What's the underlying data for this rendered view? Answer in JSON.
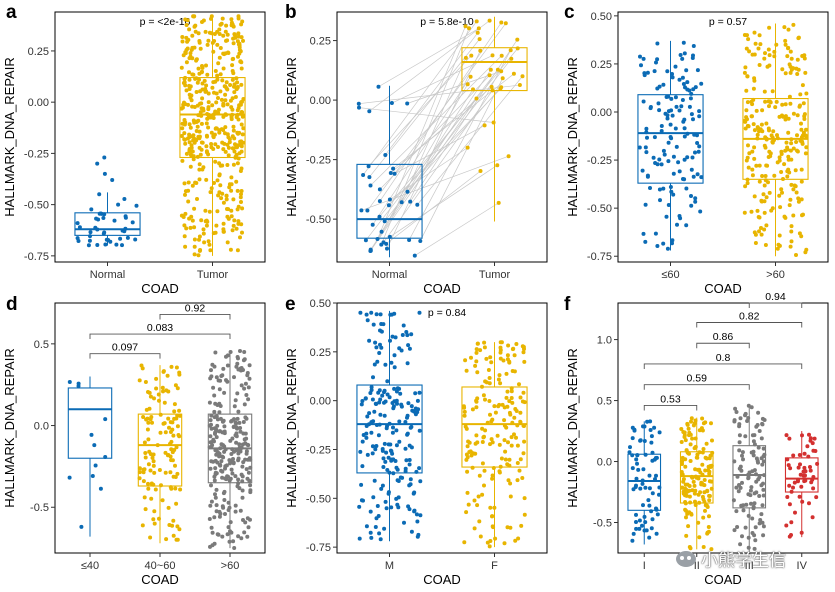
{
  "colors": {
    "blue": "#0b6bb5",
    "yellow": "#e8b500",
    "gray": "#7a7a7a",
    "red": "#d3302f"
  },
  "watermark": {
    "text": "小熊学生信",
    "icon": "wechat-icon"
  },
  "chart_data": [
    {
      "panel": "a",
      "type": "box",
      "ylabel": "HALLMARK_DNA_REPAIR",
      "xlabel": "COAD",
      "categories": [
        "Normal",
        "Tumor"
      ],
      "ylim": [
        -0.78,
        0.44
      ],
      "yticks": [
        "-0.75",
        "-0.50",
        "-0.25",
        "0.00",
        "0.25"
      ],
      "ytick_values": [
        -0.75,
        -0.5,
        -0.25,
        0,
        0.25
      ],
      "colors": [
        "#0b6bb5",
        "#e8b500"
      ],
      "pvalue": "p = <2e-16",
      "boxes": [
        {
          "n": 41,
          "min": -0.7,
          "q1": -0.65,
          "median": -0.62,
          "q3": -0.54,
          "max": -0.44,
          "outliers": [
            -0.27,
            -0.3,
            -0.38,
            -0.35
          ]
        },
        {
          "n": 480,
          "min": -0.75,
          "q1": -0.27,
          "median": -0.06,
          "q3": 0.12,
          "max": 0.42,
          "outliers": []
        }
      ]
    },
    {
      "panel": "b",
      "type": "box",
      "ylabel": "HALLMARK_DNA_REPAIR",
      "xlabel": "COAD",
      "categories": [
        "Normal",
        "Tumor"
      ],
      "ylim": [
        -0.68,
        0.37
      ],
      "yticks": [
        "-0.50",
        "-0.25",
        "0.00",
        "0.25"
      ],
      "ytick_values": [
        -0.5,
        -0.25,
        0,
        0.25
      ],
      "colors": [
        "#0b6bb5",
        "#e8b500"
      ],
      "pvalue": "p = 5.8e-10",
      "paired": true,
      "boxes": [
        {
          "n": 41,
          "min": -0.66,
          "q1": -0.58,
          "median": -0.5,
          "q3": -0.27,
          "max": 0.06,
          "outliers": []
        },
        {
          "n": 41,
          "min": -0.51,
          "q1": 0.04,
          "median": 0.16,
          "q3": 0.22,
          "max": 0.35,
          "outliers": []
        }
      ]
    },
    {
      "panel": "c",
      "type": "box",
      "ylabel": "HALLMARK_DNA_REPAIR",
      "xlabel": "COAD",
      "categories": [
        "≤60",
        ">60"
      ],
      "ylim": [
        -0.78,
        0.52
      ],
      "yticks": [
        "-0.75",
        "-0.50",
        "-0.25",
        "0.00",
        "0.25",
        "0.50"
      ],
      "ytick_values": [
        -0.75,
        -0.5,
        -0.25,
        0,
        0.25,
        0.5
      ],
      "colors": [
        "#0b6bb5",
        "#e8b500"
      ],
      "pvalue": "p = 0.57",
      "boxes": [
        {
          "n": 140,
          "min": -0.72,
          "q1": -0.37,
          "median": -0.11,
          "q3": 0.09,
          "max": 0.37,
          "outliers": []
        },
        {
          "n": 260,
          "min": -0.75,
          "q1": -0.35,
          "median": -0.14,
          "q3": 0.07,
          "max": 0.46,
          "outliers": []
        }
      ]
    },
    {
      "panel": "d",
      "type": "box",
      "ylabel": "HALLMARK_DNA_REPAIR",
      "xlabel": "COAD",
      "categories": [
        "≤40",
        "40~60",
        ">60"
      ],
      "ylim": [
        -0.78,
        0.75
      ],
      "yticks": [
        "-0.5",
        "0.0",
        "0.5"
      ],
      "ytick_values": [
        -0.5,
        0,
        0.5
      ],
      "colors": [
        "#0b6bb5",
        "#e8b500",
        "#7a7a7a"
      ],
      "comparisons": [
        {
          "from": 0,
          "to": 1,
          "label": "0.097",
          "y": 0.44
        },
        {
          "from": 0,
          "to": 2,
          "label": "0.083",
          "y": 0.56
        },
        {
          "from": 1,
          "to": 2,
          "label": "0.92",
          "y": 0.68
        }
      ],
      "boxes": [
        {
          "n": 12,
          "min": -0.68,
          "q1": -0.2,
          "median": 0.1,
          "q3": 0.23,
          "max": 0.3,
          "outliers": []
        },
        {
          "n": 130,
          "min": -0.72,
          "q1": -0.37,
          "median": -0.12,
          "q3": 0.07,
          "max": 0.37,
          "outliers": []
        },
        {
          "n": 260,
          "min": -0.75,
          "q1": -0.35,
          "median": -0.14,
          "q3": 0.07,
          "max": 0.46,
          "outliers": []
        }
      ]
    },
    {
      "panel": "e",
      "type": "box",
      "ylabel": "HALLMARK_DNA_REPAIR",
      "xlabel": "COAD",
      "categories": [
        "M",
        "F"
      ],
      "ylim": [
        -0.78,
        0.5
      ],
      "yticks": [
        "-0.75",
        "-0.50",
        "-0.25",
        "0.00",
        "0.25",
        "0.50"
      ],
      "ytick_values": [
        -0.75,
        -0.5,
        -0.25,
        0,
        0.25,
        0.5
      ],
      "colors": [
        "#0b6bb5",
        "#e8b500"
      ],
      "pvalue": "p = 0.84",
      "boxes": [
        {
          "n": 210,
          "min": -0.72,
          "q1": -0.37,
          "median": -0.12,
          "q3": 0.08,
          "max": 0.46,
          "outliers": []
        },
        {
          "n": 190,
          "min": -0.75,
          "q1": -0.34,
          "median": -0.12,
          "q3": 0.07,
          "max": 0.3,
          "outliers": []
        }
      ]
    },
    {
      "panel": "f",
      "type": "box",
      "ylabel": "HALLMARK_DNA_REPAIR",
      "xlabel": "COAD",
      "categories": [
        "I",
        "II",
        "III",
        "IV"
      ],
      "ylim": [
        -0.75,
        1.3
      ],
      "yticks": [
        "-0.5",
        "0.0",
        "0.5",
        "1.0"
      ],
      "ytick_values": [
        -0.5,
        0,
        0.5,
        1.0
      ],
      "colors": [
        "#0b6bb5",
        "#e8b500",
        "#7a7a7a",
        "#d3302f"
      ],
      "comparisons": [
        {
          "from": 0,
          "to": 1,
          "label": "0.53",
          "y": 0.46
        },
        {
          "from": 0,
          "to": 2,
          "label": "0.59",
          "y": 0.63
        },
        {
          "from": 0,
          "to": 3,
          "label": "0.8",
          "y": 0.8
        },
        {
          "from": 1,
          "to": 2,
          "label": "0.86",
          "y": 0.97
        },
        {
          "from": 1,
          "to": 3,
          "label": "0.82",
          "y": 1.14
        },
        {
          "from": 2,
          "to": 3,
          "label": "0.94",
          "y": 1.3
        }
      ],
      "boxes": [
        {
          "n": 70,
          "min": -0.68,
          "q1": -0.4,
          "median": -0.16,
          "q3": 0.06,
          "max": 0.33,
          "outliers": []
        },
        {
          "n": 150,
          "min": -0.72,
          "q1": -0.34,
          "median": -0.12,
          "q3": 0.08,
          "max": 0.36,
          "outliers": []
        },
        {
          "n": 110,
          "min": -0.75,
          "q1": -0.38,
          "median": -0.11,
          "q3": 0.13,
          "max": 0.46,
          "outliers": []
        },
        {
          "n": 55,
          "min": -0.62,
          "q1": -0.25,
          "median": -0.14,
          "q3": 0.03,
          "max": 0.25,
          "outliers": []
        }
      ]
    }
  ]
}
